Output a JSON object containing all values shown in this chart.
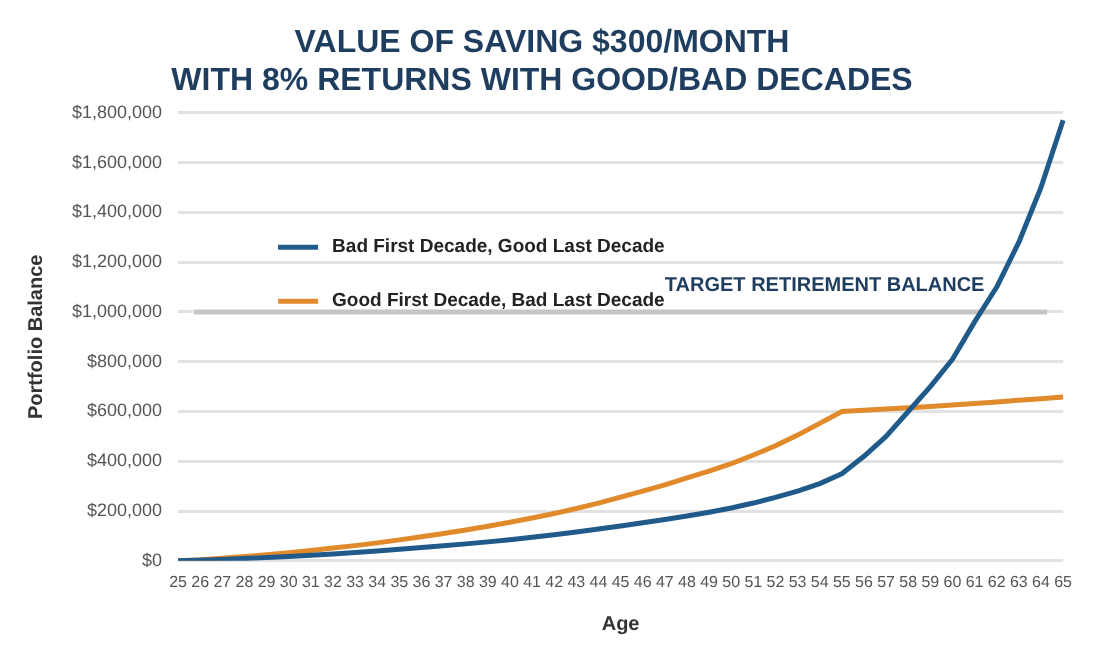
{
  "chart_data": {
    "type": "line",
    "title": "VALUE OF SAVING $300/MONTH\nWITH 8% RETURNS WITH GOOD/BAD DECADES",
    "xlabel": "Age",
    "ylabel": "Portfolio Balance",
    "categories": [
      "25",
      "26",
      "27",
      "28",
      "29",
      "30",
      "31",
      "32",
      "33",
      "34",
      "35",
      "36",
      "37",
      "38",
      "39",
      "40",
      "41",
      "42",
      "43",
      "44",
      "45",
      "46",
      "47",
      "48",
      "49",
      "50",
      "51",
      "52",
      "53",
      "54",
      "55",
      "56",
      "57",
      "58",
      "59",
      "60",
      "61",
      "62",
      "63",
      "64",
      "65"
    ],
    "series": [
      {
        "name": "Bad First Decade, Good Last Decade",
        "color": "#1f5a8a",
        "values": [
          0,
          2000,
          5000,
          9000,
          13000,
          17000,
          22000,
          27000,
          33000,
          39000,
          46000,
          53000,
          60000,
          68000,
          76000,
          85000,
          95000,
          105000,
          116000,
          128000,
          140000,
          153000,
          166000,
          180000,
          195000,
          212000,
          232000,
          255000,
          280000,
          310000,
          350000,
          420000,
          500000,
          600000,
          700000,
          810000,
          960000,
          1100000,
          1280000,
          1500000,
          1770000
        ]
      },
      {
        "name": "Good First Decade, Bad Last Decade",
        "color": "#e08a2c",
        "values": [
          0,
          4000,
          10000,
          17000,
          24000,
          32000,
          41000,
          51000,
          61000,
          72000,
          84000,
          97000,
          110000,
          124000,
          139000,
          155000,
          172000,
          190000,
          210000,
          232000,
          256000,
          280000,
          305000,
          333000,
          360000,
          390000,
          425000,
          462000,
          505000,
          552000,
          600000,
          605000,
          610000,
          615000,
          620000,
          626000,
          632000,
          638000,
          645000,
          651000,
          658000
        ]
      }
    ],
    "ylim": [
      0,
      1800000
    ],
    "yticks": [
      {
        "value": 0,
        "label": "$0"
      },
      {
        "value": 200000,
        "label": "$200,000"
      },
      {
        "value": 400000,
        "label": "$400,000"
      },
      {
        "value": 600000,
        "label": "$600,000"
      },
      {
        "value": 800000,
        "label": "$800,000"
      },
      {
        "value": 1000000,
        "label": "$1,000,000"
      },
      {
        "value": 1200000,
        "label": "$1,200,000"
      },
      {
        "value": 1400000,
        "label": "$1,400,000"
      },
      {
        "value": 1600000,
        "label": "$1,600,000"
      },
      {
        "value": 1800000,
        "label": "$1,800,000"
      }
    ],
    "ref_lines": [
      {
        "axis": "y",
        "value": 1000000,
        "label": "TARGET RETIREMENT BALANCE",
        "color": "#c8c4bf"
      }
    ],
    "grid": "y",
    "legend": "left",
    "marker": "none",
    "line_style": "solid"
  }
}
